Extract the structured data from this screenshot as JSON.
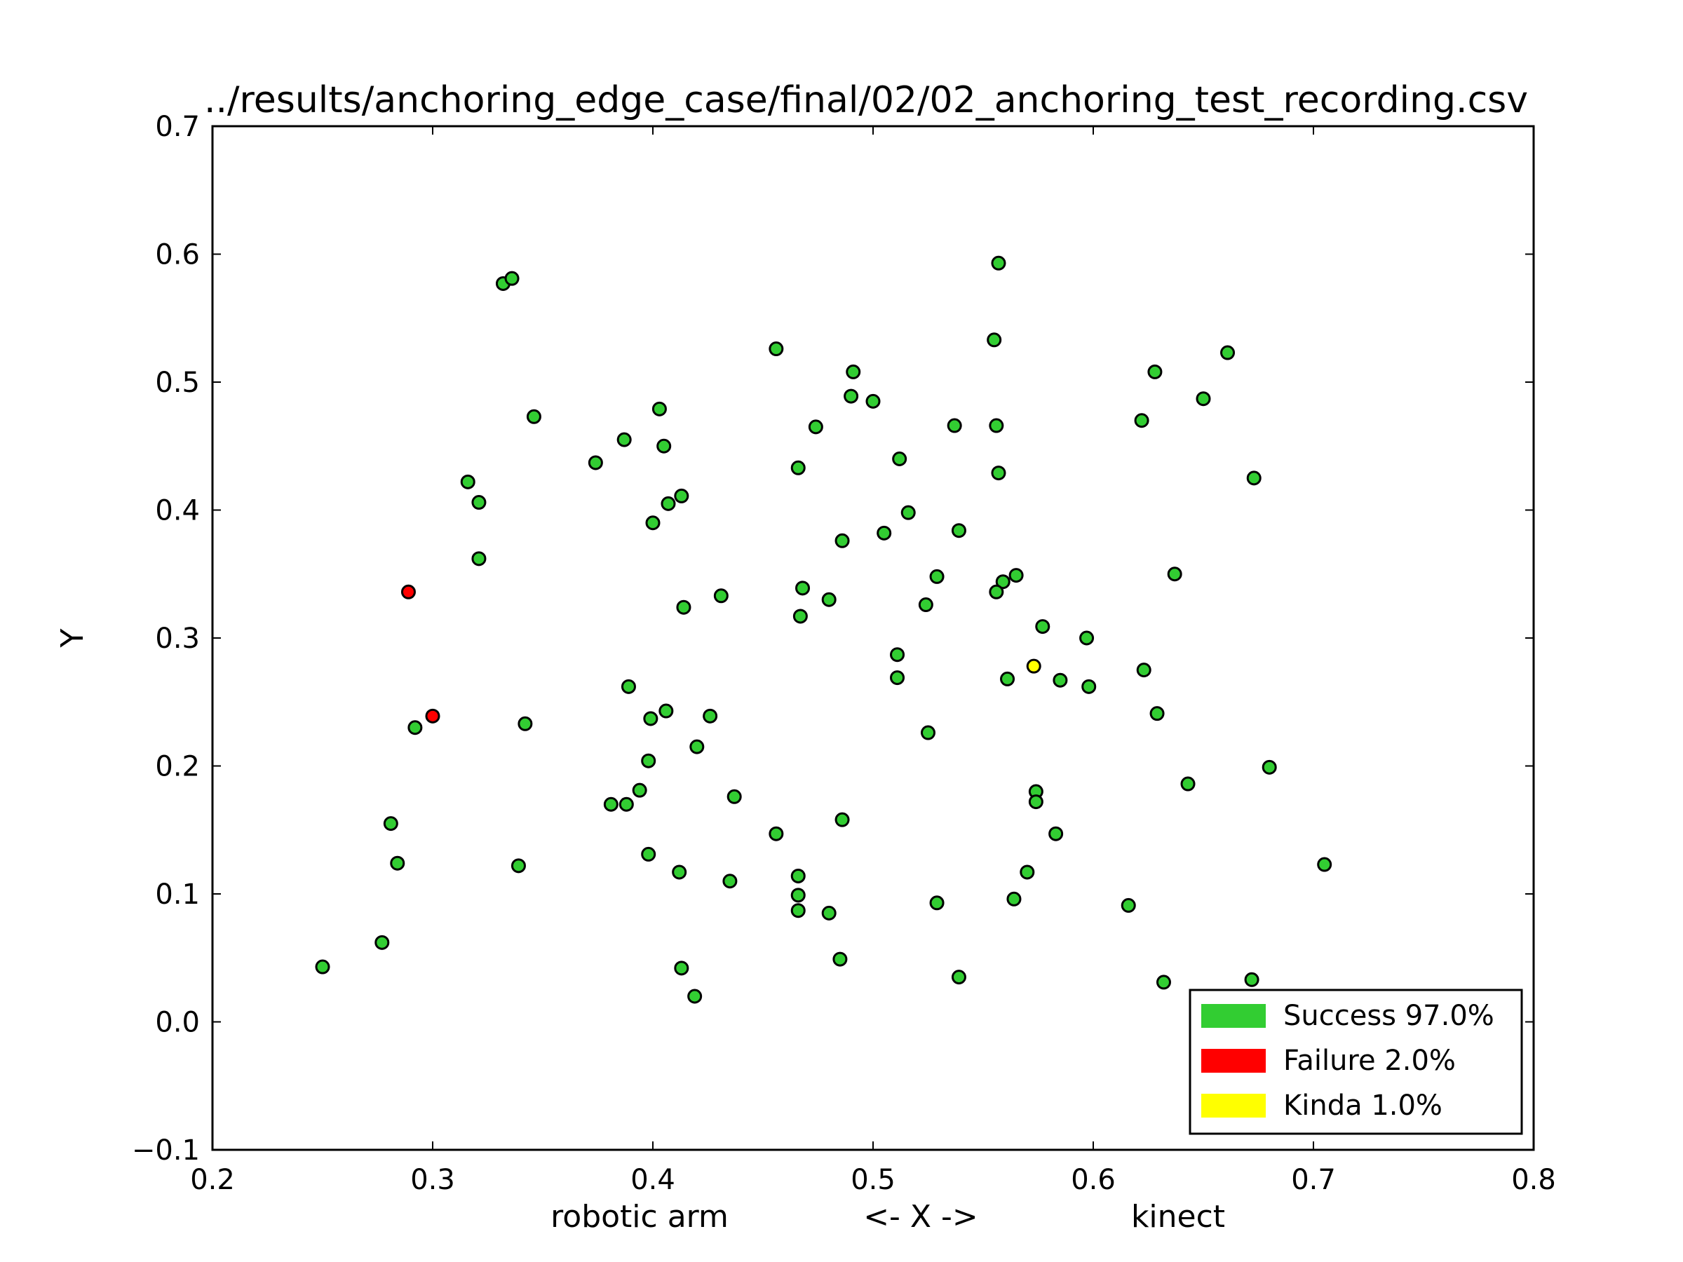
{
  "chart_data": {
    "type": "scatter",
    "title": "../results/anchoring_edge_case/final/02/02_anchoring_test_recording.csv",
    "ylabel": "Y",
    "xlabel_parts": {
      "left": "robotic arm",
      "center": "<- X ->",
      "right": "kinect"
    },
    "xlim": [
      0.2,
      0.8
    ],
    "ylim": [
      -0.1,
      0.7
    ],
    "xticks": [
      0.2,
      0.3,
      0.4,
      0.5,
      0.6,
      0.7,
      0.8
    ],
    "xtick_labels": [
      "0.2",
      "0.3",
      "0.4",
      "0.5",
      "0.6",
      "0.7",
      "0.8"
    ],
    "yticks": [
      -0.1,
      0.0,
      0.1,
      0.2,
      0.3,
      0.4,
      0.5,
      0.6,
      0.7
    ],
    "ytick_labels": [
      "−0.1",
      "0.0",
      "0.1",
      "0.2",
      "0.3",
      "0.4",
      "0.5",
      "0.6",
      "0.7"
    ],
    "grid": false,
    "legend_position": "bottom-right",
    "series": [
      {
        "name": "Success 97.0%",
        "color": "#32cd32",
        "points": [
          [
            0.332,
            0.577
          ],
          [
            0.336,
            0.581
          ],
          [
            0.346,
            0.473
          ],
          [
            0.316,
            0.422
          ],
          [
            0.321,
            0.406
          ],
          [
            0.321,
            0.362
          ],
          [
            0.292,
            0.23
          ],
          [
            0.342,
            0.233
          ],
          [
            0.281,
            0.155
          ],
          [
            0.284,
            0.124
          ],
          [
            0.339,
            0.122
          ],
          [
            0.277,
            0.062
          ],
          [
            0.25,
            0.043
          ],
          [
            0.374,
            0.437
          ],
          [
            0.387,
            0.455
          ],
          [
            0.403,
            0.479
          ],
          [
            0.405,
            0.45
          ],
          [
            0.407,
            0.405
          ],
          [
            0.413,
            0.411
          ],
          [
            0.4,
            0.39
          ],
          [
            0.414,
            0.324
          ],
          [
            0.431,
            0.333
          ],
          [
            0.389,
            0.262
          ],
          [
            0.399,
            0.237
          ],
          [
            0.406,
            0.243
          ],
          [
            0.426,
            0.239
          ],
          [
            0.42,
            0.215
          ],
          [
            0.398,
            0.204
          ],
          [
            0.394,
            0.181
          ],
          [
            0.381,
            0.17
          ],
          [
            0.388,
            0.17
          ],
          [
            0.437,
            0.176
          ],
          [
            0.398,
            0.131
          ],
          [
            0.412,
            0.117
          ],
          [
            0.435,
            0.11
          ],
          [
            0.413,
            0.042
          ],
          [
            0.419,
            0.02
          ],
          [
            0.456,
            0.526
          ],
          [
            0.466,
            0.433
          ],
          [
            0.474,
            0.465
          ],
          [
            0.491,
            0.508
          ],
          [
            0.49,
            0.489
          ],
          [
            0.5,
            0.485
          ],
          [
            0.486,
            0.376
          ],
          [
            0.505,
            0.382
          ],
          [
            0.512,
            0.44
          ],
          [
            0.516,
            0.398
          ],
          [
            0.468,
            0.339
          ],
          [
            0.467,
            0.317
          ],
          [
            0.48,
            0.33
          ],
          [
            0.524,
            0.326
          ],
          [
            0.529,
            0.348
          ],
          [
            0.511,
            0.287
          ],
          [
            0.511,
            0.269
          ],
          [
            0.525,
            0.226
          ],
          [
            0.456,
            0.147
          ],
          [
            0.486,
            0.158
          ],
          [
            0.466,
            0.114
          ],
          [
            0.466,
            0.099
          ],
          [
            0.466,
            0.087
          ],
          [
            0.48,
            0.085
          ],
          [
            0.485,
            0.049
          ],
          [
            0.529,
            0.093
          ],
          [
            0.537,
            0.466
          ],
          [
            0.539,
            0.384
          ],
          [
            0.557,
            0.593
          ],
          [
            0.555,
            0.533
          ],
          [
            0.556,
            0.466
          ],
          [
            0.557,
            0.429
          ],
          [
            0.559,
            0.344
          ],
          [
            0.556,
            0.336
          ],
          [
            0.565,
            0.349
          ],
          [
            0.577,
            0.309
          ],
          [
            0.561,
            0.268
          ],
          [
            0.585,
            0.267
          ],
          [
            0.574,
            0.18
          ],
          [
            0.574,
            0.172
          ],
          [
            0.583,
            0.147
          ],
          [
            0.57,
            0.117
          ],
          [
            0.564,
            0.096
          ],
          [
            0.539,
            0.035
          ],
          [
            0.597,
            0.3
          ],
          [
            0.598,
            0.262
          ],
          [
            0.623,
            0.275
          ],
          [
            0.629,
            0.241
          ],
          [
            0.622,
            0.47
          ],
          [
            0.628,
            0.508
          ],
          [
            0.65,
            0.487
          ],
          [
            0.661,
            0.523
          ],
          [
            0.673,
            0.425
          ],
          [
            0.637,
            0.35
          ],
          [
            0.643,
            0.186
          ],
          [
            0.68,
            0.199
          ],
          [
            0.616,
            0.091
          ],
          [
            0.632,
            0.031
          ],
          [
            0.672,
            0.033
          ],
          [
            0.705,
            0.123
          ]
        ]
      },
      {
        "name": "Failure 2.0%",
        "color": "#ff0000",
        "points": [
          [
            0.289,
            0.336
          ],
          [
            0.3,
            0.239
          ]
        ]
      },
      {
        "name": "Kinda 1.0%",
        "color": "#ffff00",
        "points": [
          [
            0.573,
            0.278
          ]
        ]
      }
    ]
  }
}
